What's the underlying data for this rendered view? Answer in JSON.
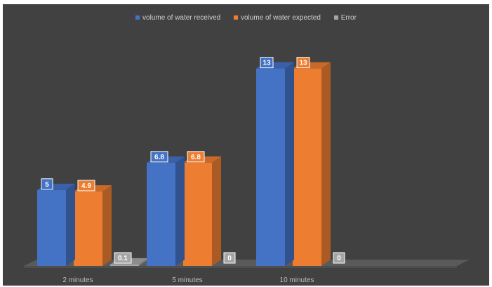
{
  "chart_data": {
    "type": "bar",
    "title": "",
    "xlabel": "",
    "ylabel": "",
    "categories": [
      "2 minutes",
      "5 minutes",
      "10 minutes"
    ],
    "series": [
      {
        "name": "volume of water received",
        "values": [
          5,
          6.8,
          13
        ],
        "color": "#4472c4",
        "labels": [
          "5",
          "6.8",
          "13"
        ]
      },
      {
        "name": "volume of water expected",
        "values": [
          4.9,
          6.8,
          13
        ],
        "color": "#ed7d31",
        "labels": [
          "4.9",
          "6.8",
          "13"
        ]
      },
      {
        "name": "Error",
        "values": [
          0.1,
          0,
          0
        ],
        "color": "#a5a5a5",
        "labels": [
          "0.1",
          "0",
          "0"
        ]
      }
    ],
    "ylim": [
      0,
      14
    ],
    "legend_position": "top",
    "grid": false,
    "style": "3d-column"
  }
}
